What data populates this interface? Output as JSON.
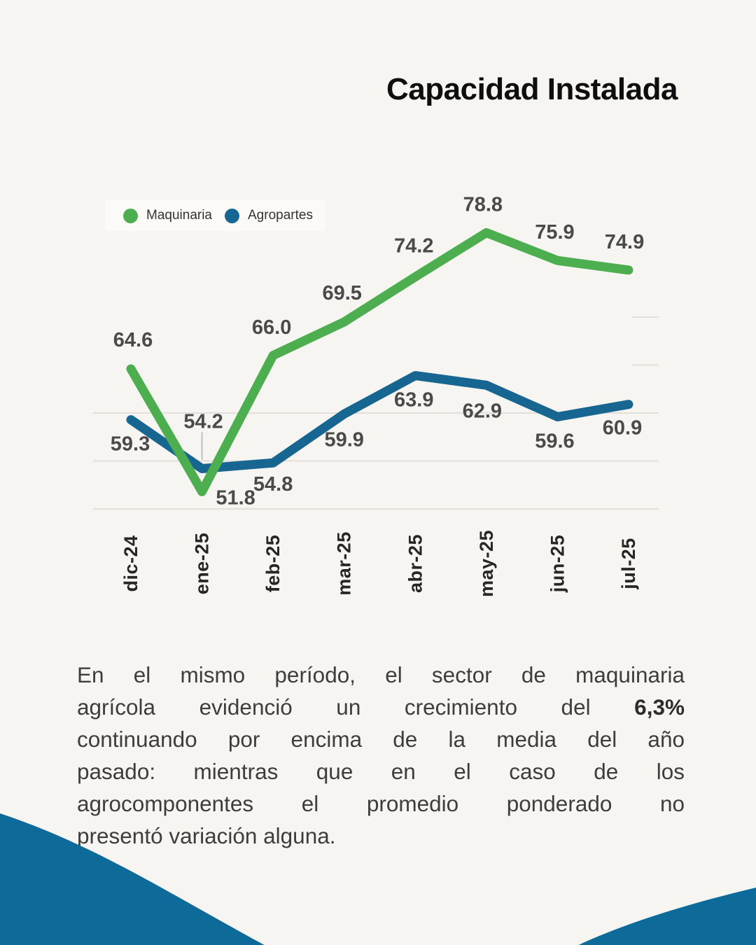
{
  "title": "Capacidad Instalada",
  "chart_data": {
    "type": "line",
    "categories": [
      "dic-24",
      "ene-25",
      "feb-25",
      "mar-25",
      "abr-25",
      "may-25",
      "jun-25",
      "jul-25"
    ],
    "series": [
      {
        "name": "Maquinaria",
        "color": "#4cae4f",
        "values": [
          64.6,
          51.8,
          66.0,
          69.5,
          74.2,
          78.8,
          75.9,
          74.9
        ]
      },
      {
        "name": "Agropartes",
        "color": "#176591",
        "values": [
          59.3,
          54.2,
          54.8,
          59.9,
          63.9,
          62.9,
          59.6,
          60.9
        ]
      }
    ],
    "title": "Capacidad Instalada",
    "xlabel": "",
    "ylabel": "",
    "ylim": [
      50,
      80
    ],
    "ygrid": [
      50,
      55,
      60,
      65,
      70
    ],
    "grid": "faint horizontal",
    "legend_position": "top-left",
    "data_labels": "one-decimal"
  },
  "paragraph": {
    "line1": "En el mismo período, el sector de maquinaria",
    "line2_text": "agrícola evidenció un crecimiento del",
    "line2_bold": "6,3%",
    "line3": "continuando por encima de la media del año",
    "line4": "pasado: mientras que en el caso de los",
    "line5": "agrocomponentes el promedio ponderado no",
    "line6": "presentó variación alguna."
  },
  "colors": {
    "background": "#f6f5f1",
    "maquinaria_line": "#4cae4f",
    "agropartes_line": "#176591",
    "wave": "#0d6a99",
    "grid_line": "#e2dfd9",
    "data_label": "#4a4a4a",
    "axis_label": "#262626",
    "body_text": "#3d3d3d"
  }
}
